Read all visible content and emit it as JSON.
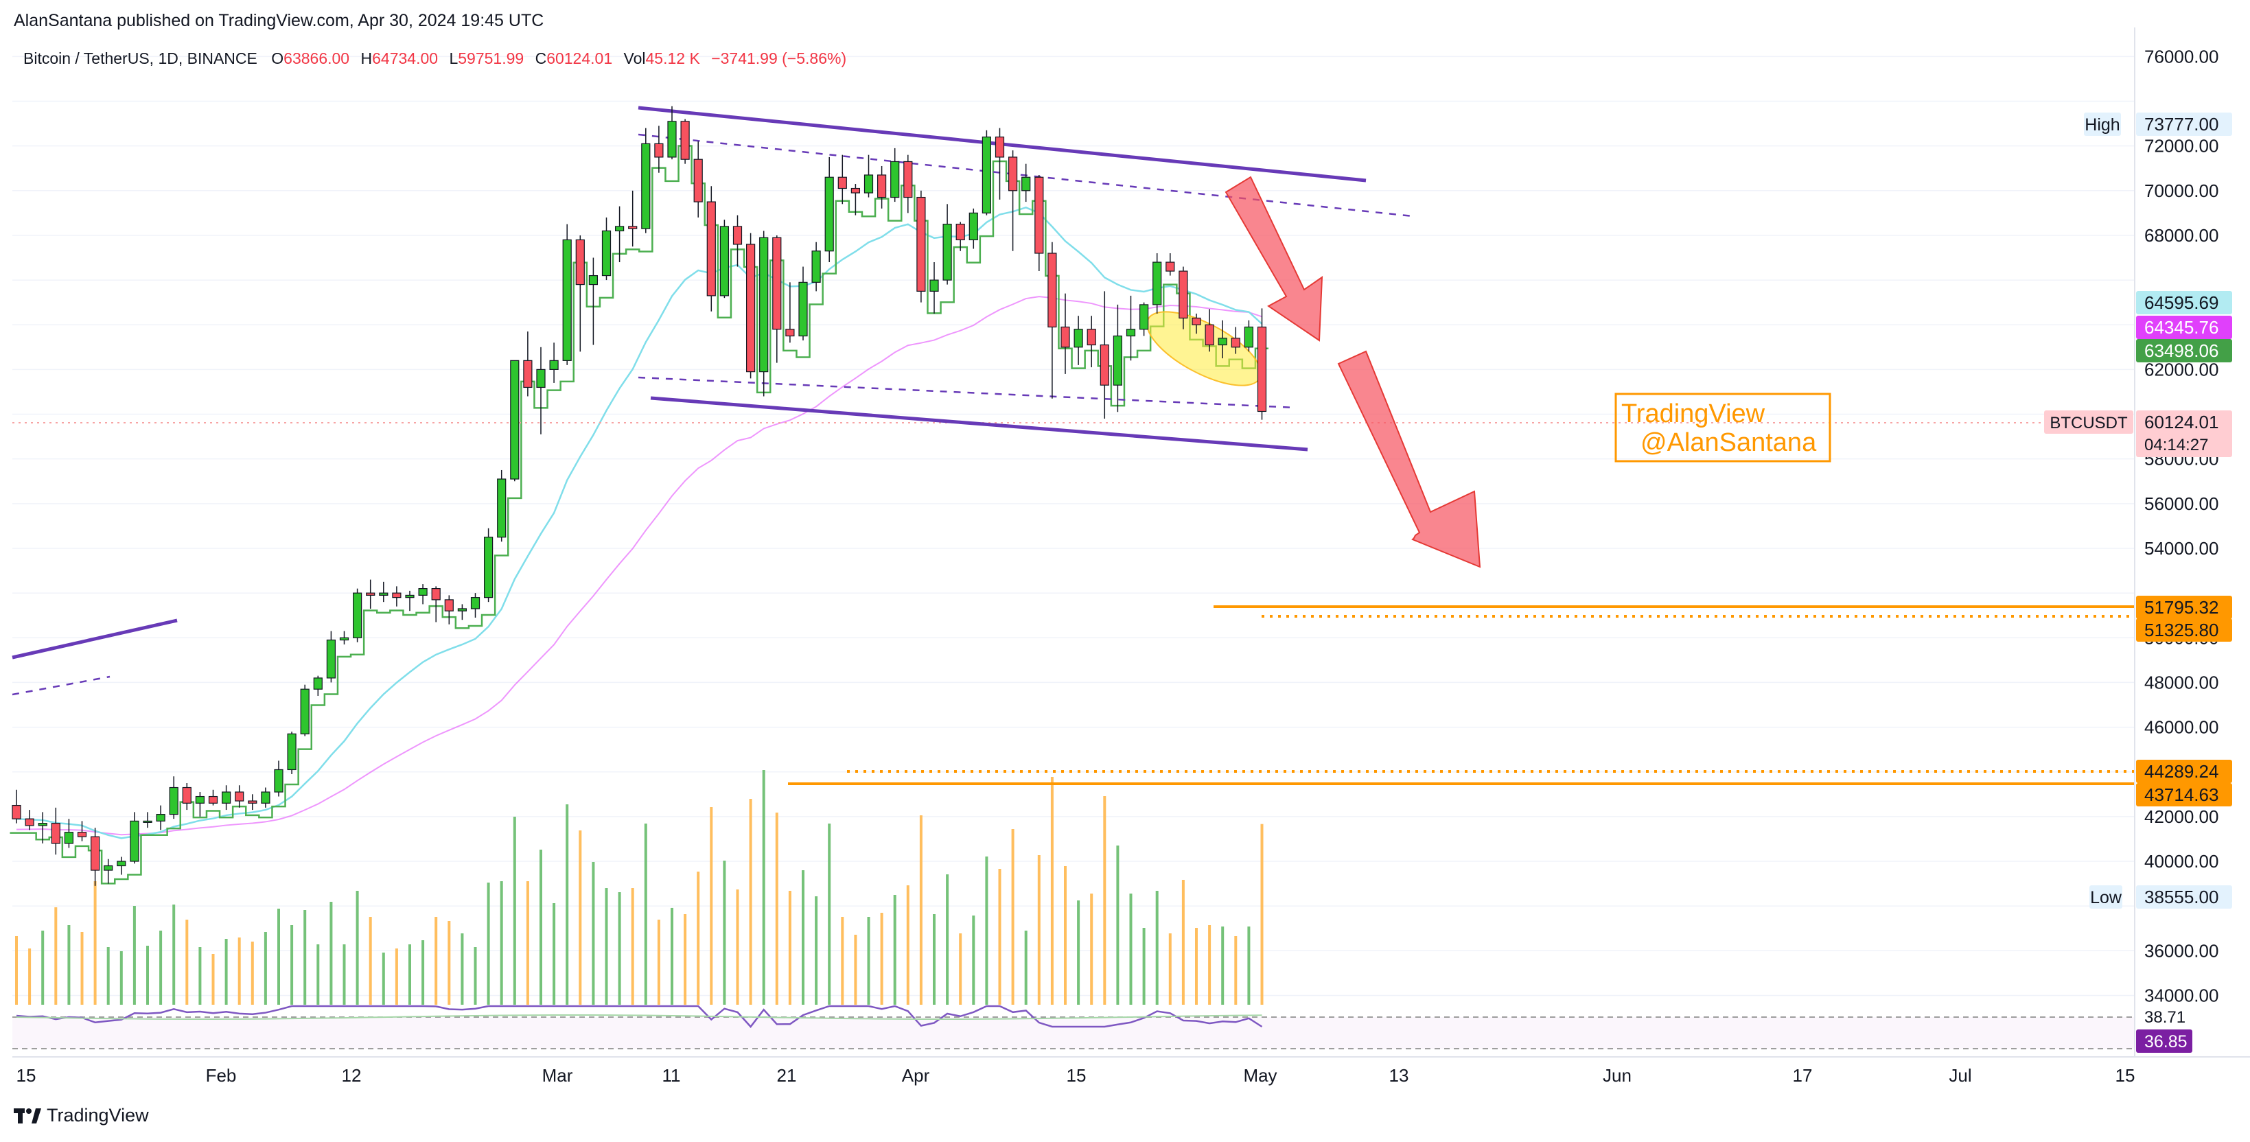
{
  "publisher": "AlanSantana published on TradingView.com, Apr 30, 2024 19:45 UTC",
  "symbol_info": {
    "title": "Bitcoin / TetherUS, 1D, BINANCE",
    "o_label": "O",
    "o_value": "63866.00",
    "h_label": "H",
    "h_value": "64734.00",
    "l_label": "L",
    "l_value": "59751.99",
    "c_label": "C",
    "c_value": "60124.01",
    "vol_label": "Vol",
    "vol_value": "45.12 K",
    "change": "−3741.99 (−5.86%)"
  },
  "watermark": {
    "line1": "TradingView",
    "line2": "@AlanSantana"
  },
  "footer": {
    "brand": "TradingView"
  },
  "colors": {
    "up": "#22ab94",
    "up_fill": "#2ec52e",
    "down": "#f7525f",
    "purple": "#673ab7",
    "orange": "#ff9800",
    "ma_green": "#4caf50",
    "ma_pink": "#e040fb",
    "ma_cyan": "#80deea",
    "rsi": "#7e57c2"
  },
  "chart_data": {
    "type": "candlestick",
    "y_axis_ticks": [
      "76000.00",
      "72000.00",
      "70000.00",
      "68000.00",
      "62000.00",
      "58000.00",
      "56000.00",
      "54000.00",
      "50000.00",
      "48000.00",
      "46000.00",
      "42000.00",
      "40000.00",
      "36000.00",
      "34000.00"
    ],
    "y_range": [
      33400,
      77300
    ],
    "x_axis_ticks": [
      "15",
      "Feb",
      "12",
      "Mar",
      "11",
      "21",
      "Apr",
      "15",
      "May",
      "13",
      "Jun",
      "17",
      "Jul",
      "15"
    ],
    "ohlc": [
      [
        42500,
        43200,
        41700,
        41900
      ],
      [
        41900,
        42300,
        41400,
        41600
      ],
      [
        41600,
        42200,
        40800,
        41700
      ],
      [
        41700,
        42400,
        40300,
        40800
      ],
      [
        40800,
        41900,
        40600,
        41300
      ],
      [
        41300,
        41800,
        40900,
        41100
      ],
      [
        41100,
        41500,
        38900,
        39600
      ],
      [
        39600,
        40100,
        39000,
        39800
      ],
      [
        39800,
        40200,
        39400,
        40000
      ],
      [
        40000,
        42200,
        39900,
        41800
      ],
      [
        41800,
        42200,
        41500,
        41800
      ],
      [
        41800,
        42500,
        41400,
        42100
      ],
      [
        42100,
        43800,
        41900,
        43300
      ],
      [
        43300,
        43500,
        42300,
        42600
      ],
      [
        42600,
        43100,
        42000,
        42900
      ],
      [
        42900,
        43200,
        42500,
        42600
      ],
      [
        42600,
        43400,
        42300,
        43100
      ],
      [
        43100,
        43400,
        42400,
        42700
      ],
      [
        42700,
        43000,
        42300,
        42600
      ],
      [
        42600,
        43300,
        42400,
        43100
      ],
      [
        43100,
        44500,
        42900,
        44100
      ],
      [
        44100,
        45800,
        43900,
        45700
      ],
      [
        45700,
        47900,
        45600,
        47700
      ],
      [
        47700,
        48300,
        47400,
        48200
      ],
      [
        48200,
        50300,
        48000,
        49900
      ],
      [
        49900,
        50300,
        49700,
        50000
      ],
      [
        50000,
        52200,
        49800,
        52000
      ],
      [
        52000,
        52600,
        51300,
        51900
      ],
      [
        51900,
        52500,
        51600,
        52000
      ],
      [
        52000,
        52300,
        51400,
        51800
      ],
      [
        51800,
        52100,
        51200,
        51900
      ],
      [
        51900,
        52400,
        51500,
        52200
      ],
      [
        52200,
        52300,
        50700,
        51700
      ],
      [
        51700,
        51900,
        50600,
        51200
      ],
      [
        51200,
        51500,
        50800,
        51300
      ],
      [
        51300,
        52000,
        50900,
        51800
      ],
      [
        51800,
        54900,
        51600,
        54500
      ],
      [
        54500,
        57500,
        54300,
        57100
      ],
      [
        57100,
        62400,
        57000,
        62400
      ],
      [
        62400,
        63700,
        60800,
        61200
      ],
      [
        61200,
        63000,
        59100,
        62000
      ],
      [
        62000,
        63200,
        61400,
        62400
      ],
      [
        62400,
        68500,
        62200,
        67800
      ],
      [
        67800,
        68000,
        62800,
        65800
      ],
      [
        65800,
        67000,
        63100,
        66200
      ],
      [
        66200,
        68800,
        66000,
        68200
      ],
      [
        68200,
        69300,
        66800,
        68400
      ],
      [
        68400,
        70000,
        67500,
        68300
      ],
      [
        68300,
        72800,
        68100,
        72100
      ],
      [
        72100,
        72900,
        70800,
        71500
      ],
      [
        71500,
        73777,
        71400,
        73100
      ],
      [
        73100,
        73200,
        71200,
        71400
      ],
      [
        71400,
        72200,
        68800,
        69500
      ],
      [
        69500,
        70200,
        64600,
        65300
      ],
      [
        65300,
        68700,
        65200,
        68400
      ],
      [
        68400,
        68900,
        66600,
        67600
      ],
      [
        67600,
        68100,
        61600,
        61900
      ],
      [
        61900,
        68200,
        60800,
        67900
      ],
      [
        67900,
        68000,
        62300,
        63800
      ],
      [
        63800,
        65900,
        63200,
        63500
      ],
      [
        63500,
        66600,
        63300,
        65900
      ],
      [
        65900,
        67700,
        65500,
        67300
      ],
      [
        67300,
        71500,
        66800,
        70600
      ],
      [
        70600,
        71600,
        69400,
        70100
      ],
      [
        70100,
        70300,
        68900,
        69900
      ],
      [
        69900,
        71600,
        69700,
        70700
      ],
      [
        70700,
        71100,
        69200,
        69700
      ],
      [
        69700,
        71900,
        69500,
        71300
      ],
      [
        71300,
        71600,
        69000,
        69700
      ],
      [
        69700,
        70000,
        65000,
        65500
      ],
      [
        65500,
        66800,
        64500,
        66000
      ],
      [
        66000,
        69400,
        65800,
        68500
      ],
      [
        68500,
        68600,
        67300,
        67800
      ],
      [
        67800,
        69200,
        67400,
        69000
      ],
      [
        69000,
        72700,
        68900,
        72400
      ],
      [
        72400,
        72800,
        69600,
        71500
      ],
      [
        71500,
        71800,
        67300,
        70000
      ],
      [
        70000,
        71200,
        69500,
        70600
      ],
      [
        70600,
        70700,
        66400,
        67200
      ],
      [
        67200,
        67700,
        60700,
        63900
      ],
      [
        63900,
        65400,
        61800,
        63000
      ],
      [
        63000,
        64400,
        62200,
        63800
      ],
      [
        63800,
        64400,
        62100,
        63100
      ],
      [
        63100,
        65500,
        59800,
        61300
      ],
      [
        61300,
        64900,
        60100,
        63500
      ],
      [
        63500,
        65300,
        62400,
        63800
      ],
      [
        63800,
        65000,
        63500,
        64900
      ],
      [
        64900,
        67200,
        64500,
        66800
      ],
      [
        66800,
        67200,
        66200,
        66400
      ],
      [
        66400,
        66600,
        63800,
        64300
      ],
      [
        64300,
        64500,
        63600,
        64000
      ],
      [
        64000,
        64700,
        62800,
        63100
      ],
      [
        63100,
        64200,
        62500,
        63400
      ],
      [
        63400,
        63900,
        62700,
        63000
      ],
      [
        63000,
        64200,
        62800,
        63900
      ],
      [
        63900,
        64734,
        59751,
        60124
      ]
    ],
    "levels": {
      "high": {
        "label": "High",
        "value": "73777.00"
      },
      "low": {
        "label": "Low",
        "value": "38555.00"
      },
      "ma_cyan": "64595.69",
      "ma_pink": "64345.76",
      "ma_green": "63498.06",
      "last": {
        "label": "BTCUSDT",
        "value": "60124.01",
        "countdown": "04:14:27"
      },
      "orange_1": "51795.32",
      "orange_2": "51325.80",
      "orange_3": "44289.24",
      "orange_4": "43714.63"
    },
    "rsi": {
      "upper": "38.71",
      "value": "36.85"
    }
  }
}
